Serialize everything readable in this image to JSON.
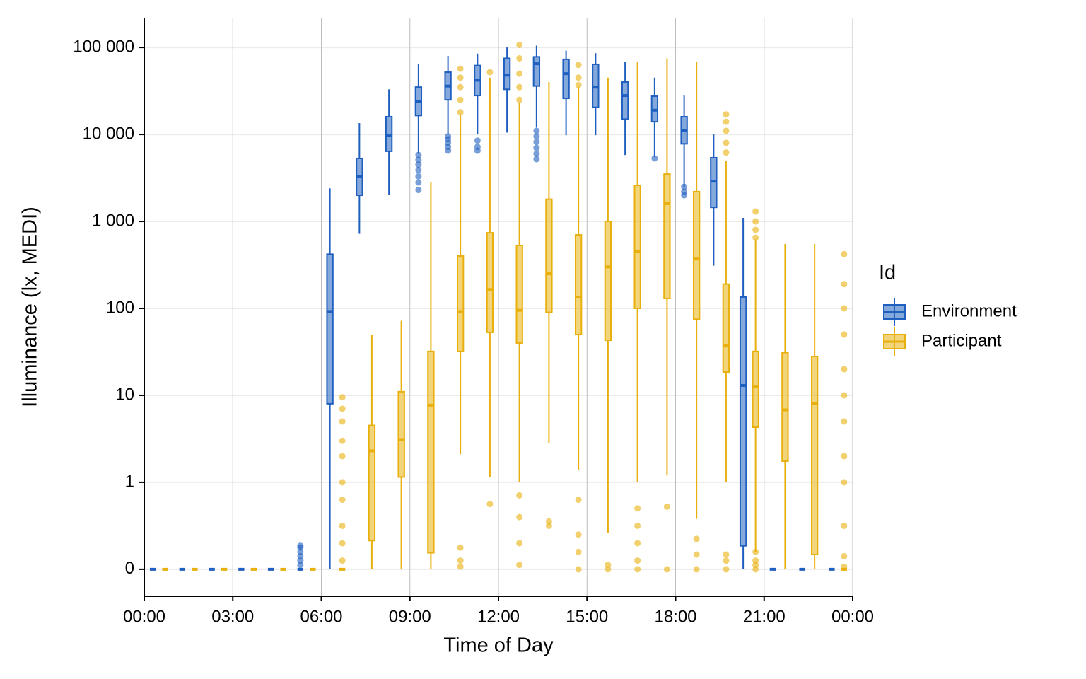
{
  "chart_data": {
    "type": "boxplot",
    "x_label": "Time of Day",
    "y_label": "Illuminance (lx, MEDI)",
    "legend_title": "Id",
    "legend_position": "right",
    "y_scale": "symlog",
    "grid": true,
    "x": [
      0.5,
      1.5,
      2.5,
      3.5,
      4.5,
      5.5,
      6.5,
      7.5,
      8.5,
      9.5,
      10.5,
      11.5,
      12.5,
      13.5,
      14.5,
      15.5,
      16.5,
      17.5,
      18.5,
      19.5,
      20.5,
      21.5,
      22.5,
      23.5
    ],
    "xlim": [
      0,
      24
    ],
    "xticks": [
      {
        "value": 0,
        "label": "00:00"
      },
      {
        "value": 3,
        "label": "03:00"
      },
      {
        "value": 6,
        "label": "06:00"
      },
      {
        "value": 9,
        "label": "09:00"
      },
      {
        "value": 12,
        "label": "12:00"
      },
      {
        "value": 15,
        "label": "15:00"
      },
      {
        "value": 18,
        "label": "18:00"
      },
      {
        "value": 21,
        "label": "21:00"
      },
      {
        "value": 24,
        "label": "00:00"
      }
    ],
    "ylim": [
      -0.31,
      220000
    ],
    "yticks": [
      0,
      1,
      10,
      100,
      {
        "value": 1000,
        "label": "1 000"
      },
      {
        "value": 10000,
        "label": "10 000"
      },
      {
        "value": 100000,
        "label": "100 000"
      }
    ],
    "series": [
      {
        "name": "Environment",
        "color": "#1f5fbf",
        "low": [
          0,
          0,
          0,
          0,
          0,
          0,
          0,
          720,
          2000,
          6000,
          10000,
          10000,
          10500,
          12000,
          9800,
          9800,
          5800,
          5500,
          2500,
          310,
          0,
          0,
          0,
          0
        ],
        "q1": [
          0,
          0,
          0,
          0,
          0,
          0,
          8,
          2000,
          6400,
          16500,
          25000,
          28000,
          33000,
          36000,
          26000,
          20500,
          15000,
          14000,
          7800,
          1450,
          0.27,
          0,
          0,
          0
        ],
        "median": [
          0,
          0,
          0,
          0,
          0,
          0,
          92,
          3300,
          9800,
          24000,
          36000,
          42000,
          48000,
          65000,
          50000,
          35000,
          28000,
          19000,
          11000,
          2900,
          13,
          0,
          0,
          0
        ],
        "q3": [
          0,
          0,
          0,
          0,
          0,
          0,
          420,
          5300,
          16000,
          35000,
          52000,
          62000,
          75000,
          78000,
          73000,
          64000,
          40000,
          27500,
          16000,
          5400,
          135,
          0,
          0,
          0
        ],
        "high": [
          0,
          0,
          0,
          0,
          0,
          0,
          2400,
          13500,
          33000,
          65000,
          80000,
          85000,
          100000,
          105000,
          92000,
          86000,
          68000,
          45000,
          28000,
          10000,
          1100,
          0,
          0,
          0
        ],
        "outliers": [
          [],
          [],
          [],
          [],
          [],
          [
            0.05,
            0.1,
            0.15,
            0.2,
            0.25,
            0.27
          ],
          [],
          [],
          [],
          [
            2300,
            2800,
            3300,
            3900,
            4500,
            5100,
            5800
          ],
          [
            6500,
            7200,
            8000,
            8800,
            9500
          ],
          [
            6500,
            7200,
            8500
          ],
          [],
          [
            5200,
            6000,
            7000,
            8200,
            9500,
            11000
          ],
          [],
          [],
          [],
          [
            5300
          ],
          [
            2000,
            2200,
            2500
          ],
          [],
          [],
          [],
          [],
          []
        ]
      },
      {
        "name": "Participant",
        "color": "#e8b00c",
        "low": [
          0,
          0,
          0,
          0,
          0,
          0,
          0,
          0,
          0,
          0,
          2.1,
          1.15,
          1,
          2.8,
          1.4,
          0.42,
          1,
          1.2,
          0.58,
          1,
          0.2,
          0,
          0,
          0
        ],
        "q1": [
          0,
          0,
          0,
          0,
          0,
          0,
          0,
          0.33,
          1.15,
          0.19,
          32,
          53,
          40,
          90,
          50,
          43,
          100,
          130,
          75,
          18.5,
          4.3,
          1.75,
          0.17,
          0
        ],
        "median": [
          0,
          0,
          0,
          0,
          0,
          0,
          0,
          2.3,
          3.1,
          7.7,
          92,
          165,
          95,
          250,
          135,
          300,
          450,
          1600,
          370,
          37,
          12.5,
          6.8,
          8,
          0
        ],
        "q3": [
          0,
          0,
          0,
          0,
          0,
          0,
          0,
          4.5,
          11,
          32,
          400,
          740,
          530,
          1800,
          700,
          1000,
          2600,
          3500,
          2200,
          190,
          32,
          31,
          28,
          0
        ],
        "high": [
          0,
          0,
          0,
          0,
          0,
          0,
          0,
          50,
          72,
          2800,
          17000,
          45000,
          23000,
          40000,
          35000,
          45000,
          68000,
          75000,
          68000,
          5000,
          620,
          550,
          550,
          0
        ],
        "outliers": [
          [],
          [],
          [],
          [],
          [],
          [],
          [
            0.1,
            0.3,
            0.5,
            0.8,
            1,
            2,
            3,
            5,
            7,
            9.5
          ],
          [],
          [],
          [],
          [
            0.03,
            0.1,
            0.25,
            18000,
            25000,
            35000,
            45000,
            57000
          ],
          [
            0.75,
            52000
          ],
          [
            0.05,
            0.3,
            0.6,
            0.85,
            25000,
            35000,
            50000,
            75000,
            107000
          ],
          [
            0.5,
            0.55
          ],
          [
            0,
            0.2,
            0.4,
            0.8,
            37000,
            45000,
            63000
          ],
          [
            0,
            0.05
          ],
          [
            0,
            0.1,
            0.3,
            0.5,
            0.7
          ],
          [
            0,
            0.72
          ],
          [
            0,
            0.17,
            0.35
          ],
          [
            0,
            0.1,
            0.17,
            6200,
            8000,
            11000,
            14000,
            17000
          ],
          [
            0,
            0.05,
            0.1,
            0.2,
            650,
            800,
            1000,
            1300
          ],
          [],
          [],
          [
            0.03,
            0.15,
            0.5,
            1,
            2,
            5,
            10,
            20,
            50,
            100,
            190,
            420
          ]
        ]
      }
    ]
  }
}
